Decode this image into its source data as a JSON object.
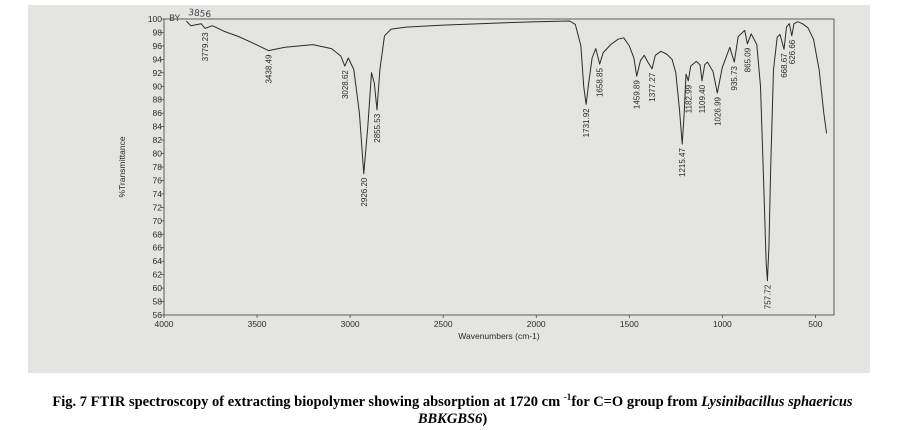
{
  "chart_data": {
    "type": "line",
    "title": "",
    "xlabel": "Wavenumbers (cm-1)",
    "ylabel": "%Transmittance",
    "xlim": [
      4000,
      400
    ],
    "ylim": [
      56,
      100
    ],
    "x_reversed": true,
    "grid": false,
    "x_ticks": [
      4000,
      3500,
      3000,
      2500,
      2000,
      1500,
      1000,
      500
    ],
    "y_ticks": [
      56,
      58,
      60,
      62,
      64,
      66,
      68,
      70,
      72,
      74,
      76,
      78,
      80,
      82,
      84,
      86,
      88,
      90,
      92,
      94,
      96,
      98,
      100
    ],
    "series": [
      {
        "points": [
          [
            3880,
            99.7
          ],
          [
            3856,
            99.0
          ],
          [
            3800,
            99.3
          ],
          [
            3779.23,
            98.6
          ],
          [
            3740,
            99.0
          ],
          [
            3680,
            98.2
          ],
          [
            3600,
            97.4
          ],
          [
            3520,
            96.4
          ],
          [
            3438.49,
            95.3
          ],
          [
            3350,
            95.8
          ],
          [
            3200,
            96.2
          ],
          [
            3100,
            95.6
          ],
          [
            3050,
            94.5
          ],
          [
            3028.62,
            93.0
          ],
          [
            3010,
            94.2
          ],
          [
            2980,
            92.5
          ],
          [
            2950,
            86.0
          ],
          [
            2926.2,
            77.0
          ],
          [
            2905,
            84.0
          ],
          [
            2885,
            92.0
          ],
          [
            2870,
            90.5
          ],
          [
            2855.53,
            86.5
          ],
          [
            2840,
            92.5
          ],
          [
            2815,
            97.5
          ],
          [
            2780,
            98.5
          ],
          [
            2700,
            98.8
          ],
          [
            2500,
            99.1
          ],
          [
            2200,
            99.4
          ],
          [
            2000,
            99.6
          ],
          [
            1820,
            99.7
          ],
          [
            1790,
            99.2
          ],
          [
            1760,
            96.0
          ],
          [
            1745,
            90.0
          ],
          [
            1731.92,
            87.3
          ],
          [
            1718,
            90.5
          ],
          [
            1700,
            94.2
          ],
          [
            1680,
            95.6
          ],
          [
            1658.85,
            93.3
          ],
          [
            1640,
            95.0
          ],
          [
            1600,
            96.2
          ],
          [
            1560,
            97.0
          ],
          [
            1530,
            97.2
          ],
          [
            1500,
            96.0
          ],
          [
            1475,
            94.2
          ],
          [
            1459.89,
            91.5
          ],
          [
            1440,
            93.8
          ],
          [
            1420,
            94.6
          ],
          [
            1400,
            93.6
          ],
          [
            1377.27,
            92.6
          ],
          [
            1360,
            94.6
          ],
          [
            1330,
            95.2
          ],
          [
            1300,
            94.8
          ],
          [
            1270,
            94.0
          ],
          [
            1250,
            92.0
          ],
          [
            1230,
            86.5
          ],
          [
            1215.47,
            81.4
          ],
          [
            1205,
            86.0
          ],
          [
            1195,
            91.8
          ],
          [
            1182.99,
            90.8
          ],
          [
            1170,
            93.0
          ],
          [
            1140,
            93.7
          ],
          [
            1120,
            93.2
          ],
          [
            1109.4,
            90.8
          ],
          [
            1095,
            93.2
          ],
          [
            1080,
            93.6
          ],
          [
            1050,
            92.2
          ],
          [
            1026.99,
            89.0
          ],
          [
            1000,
            92.8
          ],
          [
            960,
            95.8
          ],
          [
            935.73,
            93.6
          ],
          [
            915,
            97.4
          ],
          [
            880,
            98.3
          ],
          [
            865.09,
            96.3
          ],
          [
            845,
            97.8
          ],
          [
            815,
            96.2
          ],
          [
            795,
            90.0
          ],
          [
            778,
            76.0
          ],
          [
            765,
            64.0
          ],
          [
            757.72,
            61.1
          ],
          [
            750,
            66.0
          ],
          [
            740,
            78.0
          ],
          [
            725,
            92.5
          ],
          [
            705,
            97.3
          ],
          [
            690,
            97.7
          ],
          [
            668.67,
            95.5
          ],
          [
            655,
            98.8
          ],
          [
            640,
            99.3
          ],
          [
            626.66,
            97.5
          ],
          [
            615,
            99.3
          ],
          [
            595,
            99.6
          ],
          [
            570,
            99.3
          ],
          [
            540,
            98.7
          ],
          [
            510,
            97.0
          ],
          [
            480,
            92.5
          ],
          [
            455,
            86.0
          ],
          [
            440,
            83.0
          ]
        ]
      }
    ],
    "peak_labels": [
      "3779.23",
      "3438.49",
      "3028.62",
      "2926.20",
      "2855.53",
      "1731.92",
      "1658.85",
      "1459.89",
      "1377.27",
      "1215.47",
      "1182.99",
      "1109.40",
      "1026.99",
      "935.73",
      "865.09",
      "757.72",
      "668.67",
      "626.66"
    ],
    "annotations": [
      "BY",
      "3856"
    ]
  },
  "caption": {
    "prefix": "Fig. 7 FTIR spectroscopy of extracting biopolymer showing absorption at 1720 cm ",
    "superscript": "-1",
    "middle": "for C=O group from ",
    "organism": "Lysinibacillus sphaericus",
    "strain": "BBKGBS6",
    "suffix": ")"
  }
}
